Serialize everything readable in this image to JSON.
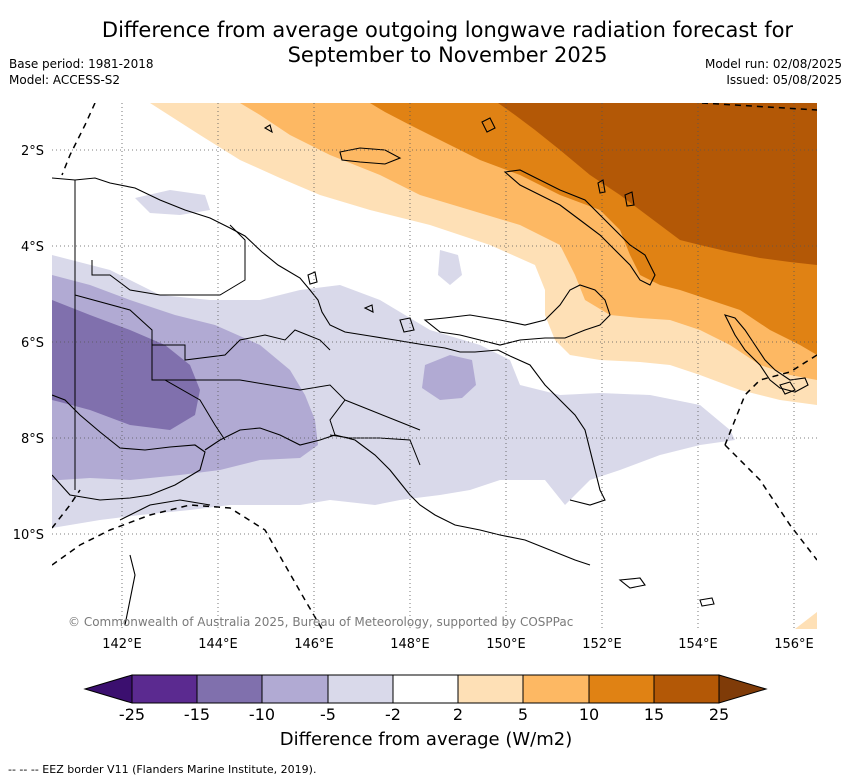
{
  "header": {
    "title_line1": "Difference from average outgoing longwave radiation forecast for",
    "title_line2": "September to November 2025",
    "base_period": "Base period: 1981-2018",
    "model": "Model: ACCESS-S2",
    "model_run": "Model run: 02/08/2025",
    "issued": "Issued: 05/08/2025"
  },
  "map": {
    "lat_labels": [
      "2°S",
      "4°S",
      "6°S",
      "8°S",
      "10°S"
    ],
    "lon_labels": [
      "142°E",
      "144°E",
      "146°E",
      "148°E",
      "150°E",
      "152°E",
      "154°E",
      "156°E"
    ],
    "copyright": "© Commonwealth of Australia 2025, Bureau of Meteorology, supported by COSPPac"
  },
  "colorbar": {
    "ticks": [
      "-25",
      "-15",
      "-10",
      "-5",
      "-2",
      "2",
      "5",
      "10",
      "15",
      "25"
    ],
    "colors": [
      "#3b0f6f",
      "#5b2a90",
      "#8070ad",
      "#b1aad3",
      "#d9d9ea",
      "#ffffff",
      "#fee0b6",
      "#fdb863",
      "#e08214",
      "#b35806",
      "#7f3b08"
    ],
    "label": "Difference from average (W/m2)"
  },
  "footnote": "--  --  -- EEZ border V11 (Flanders Marine Institute, 2019)."
}
